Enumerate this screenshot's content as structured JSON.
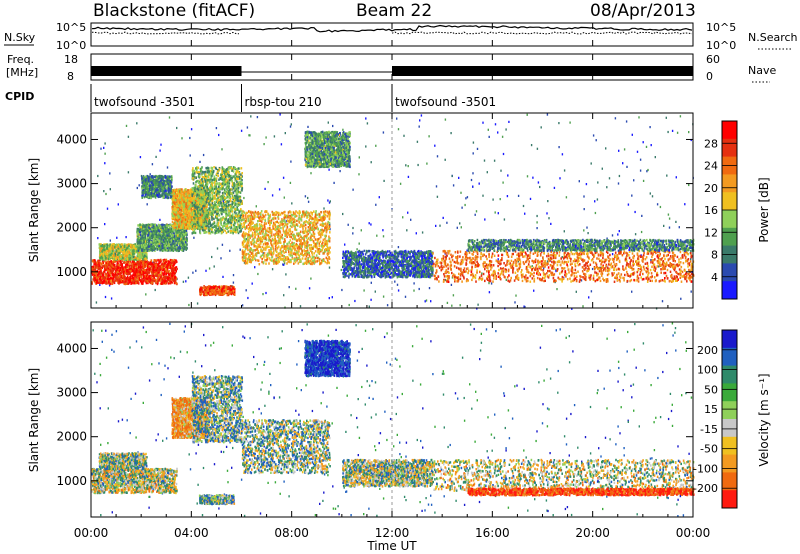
{
  "header": {
    "station": "Blackstone (fitACF)",
    "beam": "Beam 22",
    "date": "08/Apr/2013"
  },
  "noise_panel": {
    "left_label": "N.Sky",
    "right_label": "N.Search",
    "left_ticks": [
      "10^5",
      "10^0"
    ],
    "right_ticks": [
      "10^5",
      "10^0"
    ]
  },
  "freq_panel": {
    "left_label_1": "Freq.",
    "left_label_2": "[MHz]",
    "left_ticks": [
      "18",
      "8"
    ],
    "right_label": "Nave",
    "right_ticks": [
      "60",
      "0"
    ]
  },
  "cpid": {
    "label": "CPID",
    "segments": [
      {
        "name": "twofsound -3501",
        "start_h": 0,
        "end_h": 6
      },
      {
        "name": "rbsp-tou 210",
        "start_h": 6,
        "end_h": 12
      },
      {
        "name": "twofsound -3501",
        "start_h": 12,
        "end_h": 24
      }
    ]
  },
  "x_axis": {
    "label": "Time UT",
    "ticks": [
      "00:00",
      "04:00",
      "08:00",
      "12:00",
      "16:00",
      "20:00",
      "00:00"
    ],
    "range_hours": [
      0,
      24
    ]
  },
  "power_panel": {
    "ylabel": "Slant Range [km]",
    "yticks": [
      "1000",
      "2000",
      "3000",
      "4000"
    ],
    "colorbar_label": "Power [dB]",
    "colorbar_ticks": [
      "4",
      "8",
      "12",
      "16",
      "20",
      "24",
      "28"
    ],
    "colors": [
      "#1a1aff",
      "#2a4ab0",
      "#3a7a6a",
      "#4fa04f",
      "#8fd05a",
      "#f0c020",
      "#f39a20",
      "#f06a10",
      "#e53010",
      "#ff0000"
    ]
  },
  "velocity_panel": {
    "ylabel": "Slant Range [km]",
    "yticks": [
      "1000",
      "2000",
      "3000",
      "4000"
    ],
    "colorbar_label": "Velocity [m s⁻¹]",
    "colorbar_ticks": [
      "200",
      "100",
      "50",
      "15",
      "-15",
      "-50",
      "-100",
      "-200"
    ],
    "colors": [
      "#1a1acc",
      "#2060c0",
      "#2f8a6a",
      "#3aaa3a",
      "#8fd05a",
      "#c8c8c8",
      "#f0c020",
      "#f39a20",
      "#f06a10",
      "#ff1a10"
    ]
  },
  "chart_data": [
    {
      "type": "heatmap",
      "title": "Blackstone (fitACF)  Beam 22  08/Apr/2013",
      "xlabel": "Time UT",
      "ylabel": "Slant Range [km]",
      "xlim_hours": [
        0,
        24
      ],
      "ylim_km": [
        180,
        4600
      ],
      "colorbar": "Power [dB]",
      "clim": [
        0,
        30
      ],
      "regions": [
        {
          "t0": 0.0,
          "t1": 3.4,
          "r0": 750,
          "r1": 1300,
          "value": 26
        },
        {
          "t0": 0.3,
          "t1": 2.2,
          "r0": 1300,
          "r1": 1650,
          "value": 14
        },
        {
          "t0": 1.8,
          "t1": 3.8,
          "r0": 1500,
          "r1": 2100,
          "value": 10
        },
        {
          "t0": 3.2,
          "t1": 4.6,
          "r0": 2000,
          "r1": 2900,
          "value": 18
        },
        {
          "t0": 4.0,
          "t1": 6.0,
          "r0": 1900,
          "r1": 3400,
          "value": 12
        },
        {
          "t0": 4.3,
          "t1": 5.7,
          "r0": 500,
          "r1": 700,
          "value": 24
        },
        {
          "t0": 6.0,
          "t1": 9.5,
          "r0": 1200,
          "r1": 2400,
          "value": 18
        },
        {
          "t0": 8.5,
          "t1": 10.3,
          "r0": 3400,
          "r1": 4200,
          "value": 10
        },
        {
          "t0": 2.0,
          "t1": 3.2,
          "r0": 2700,
          "r1": 3200,
          "value": 8
        },
        {
          "t0": 10.0,
          "t1": 13.6,
          "r0": 900,
          "r1": 1500,
          "value": 6
        },
        {
          "t0": 13.6,
          "t1": 24.0,
          "r0": 800,
          "r1": 1500,
          "value": 22
        },
        {
          "t0": 15.0,
          "t1": 24.0,
          "r0": 1500,
          "r1": 1750,
          "value": 8
        }
      ]
    },
    {
      "type": "heatmap",
      "title": "Blackstone (fitACF)  Beam 22  08/Apr/2013",
      "xlabel": "Time UT",
      "ylabel": "Slant Range [km]",
      "xlim_hours": [
        0,
        24
      ],
      "ylim_km": [
        180,
        4600
      ],
      "colorbar": "Velocity [m s⁻¹]",
      "clim": [
        -250,
        250
      ],
      "regions": [
        {
          "t0": 0.0,
          "t1": 3.4,
          "r0": 750,
          "r1": 1300,
          "value": 0
        },
        {
          "t0": 0.3,
          "t1": 2.2,
          "r0": 1300,
          "r1": 1650,
          "value": 20
        },
        {
          "t0": 3.2,
          "t1": 4.6,
          "r0": 2000,
          "r1": 2900,
          "value": -60
        },
        {
          "t0": 4.0,
          "t1": 6.0,
          "r0": 1900,
          "r1": 3400,
          "value": 40
        },
        {
          "t0": 4.3,
          "t1": 5.7,
          "r0": 500,
          "r1": 700,
          "value": 40
        },
        {
          "t0": 6.0,
          "t1": 9.5,
          "r0": 1200,
          "r1": 2400,
          "value": 30
        },
        {
          "t0": 8.5,
          "t1": 10.3,
          "r0": 3400,
          "r1": 4200,
          "value": 150
        },
        {
          "t0": 10.0,
          "t1": 13.6,
          "r0": 900,
          "r1": 1500,
          "value": 20
        },
        {
          "t0": 13.6,
          "t1": 24.0,
          "r0": 800,
          "r1": 1500,
          "value": 0
        },
        {
          "t0": 15.0,
          "t1": 24.0,
          "r0": 700,
          "r1": 850,
          "value": -150
        }
      ]
    }
  ]
}
